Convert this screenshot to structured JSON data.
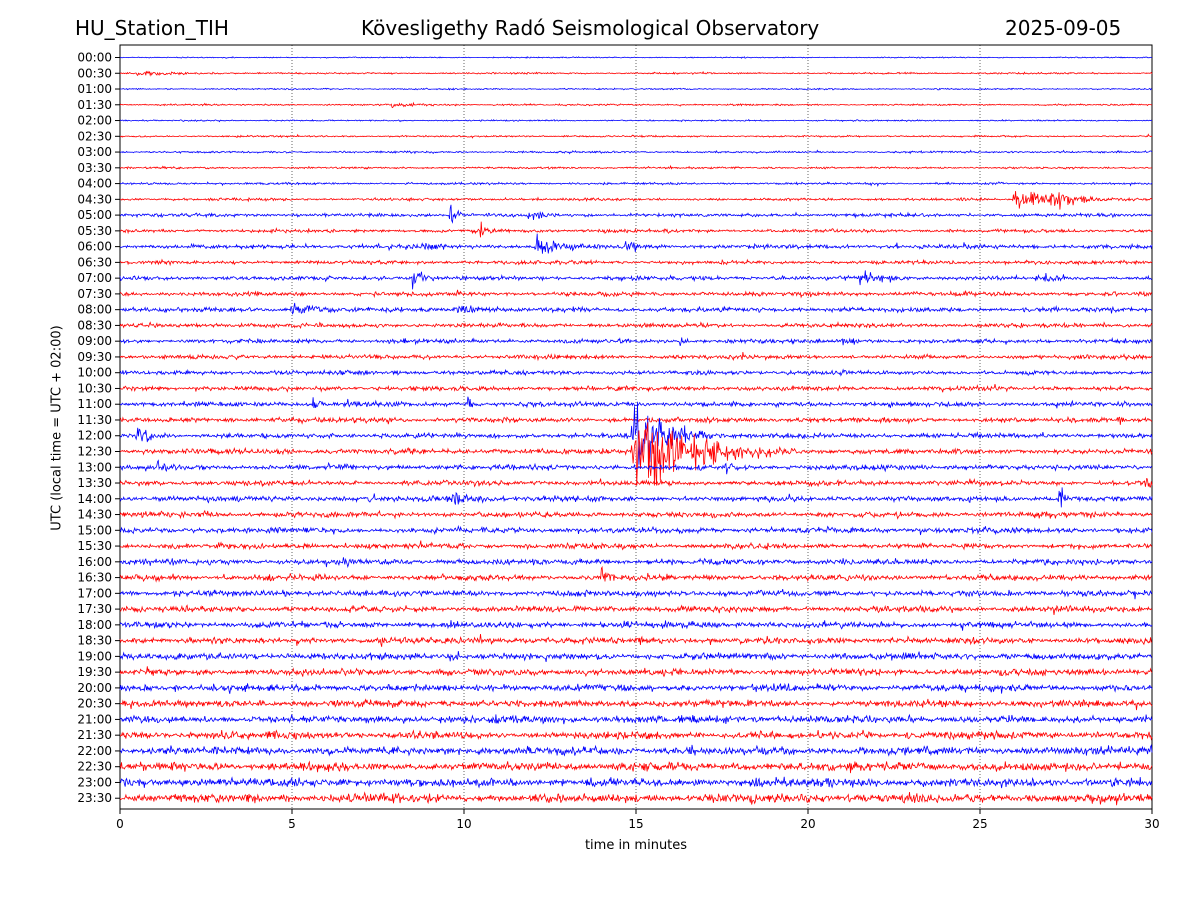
{
  "header": {
    "station": "HU_Station_TIH",
    "observatory": "Kövesligethy Radó Seismological Observatory",
    "date": "2025-09-05"
  },
  "colors": {
    "even_row": "#0000ff",
    "odd_row": "#ff0000",
    "grid": "#000000",
    "background": "#ffffff"
  },
  "chart_data": {
    "type": "line",
    "xlabel": "time in minutes",
    "ylabel": "UTC (local time = UTC + 02:00)",
    "xlim": [
      0,
      30
    ],
    "x_ticks": [
      "0",
      "5",
      "10",
      "15",
      "20",
      "25",
      "30"
    ],
    "grid": "vertical dotted lines at 5 minute intervals",
    "rows": [
      "00:00",
      "00:30",
      "01:00",
      "01:30",
      "02:00",
      "02:30",
      "03:00",
      "03:30",
      "04:00",
      "04:30",
      "05:00",
      "05:30",
      "06:00",
      "06:30",
      "07:00",
      "07:30",
      "08:00",
      "08:30",
      "09:00",
      "09:30",
      "10:00",
      "10:30",
      "11:00",
      "11:30",
      "12:00",
      "12:30",
      "13:00",
      "13:30",
      "14:00",
      "14:30",
      "15:00",
      "15:30",
      "16:00",
      "16:30",
      "17:00",
      "17:30",
      "18:00",
      "18:30",
      "19:00",
      "19:30",
      "20:00",
      "20:30",
      "21:00",
      "21:30",
      "22:00",
      "22:30",
      "23:00",
      "23:30"
    ],
    "noise_levels": [
      0.4,
      0.6,
      0.5,
      0.6,
      0.5,
      0.6,
      0.7,
      0.7,
      0.8,
      0.9,
      1.2,
      1.2,
      1.5,
      1.3,
      1.5,
      1.5,
      1.6,
      1.5,
      1.5,
      1.5,
      1.5,
      1.6,
      1.7,
      1.7,
      1.7,
      1.9,
      1.8,
      1.8,
      1.9,
      1.9,
      2.0,
      2.0,
      2.0,
      2.1,
      2.1,
      2.1,
      2.2,
      2.2,
      2.3,
      2.3,
      2.4,
      2.5,
      2.6,
      2.7,
      2.8,
      3.0,
      3.1,
      3.2
    ],
    "events": [
      {
        "row": "00:30",
        "minute": 0.5,
        "amplitude": 2,
        "duration": 3
      },
      {
        "row": "01:30",
        "minute": 7.8,
        "amplitude": 2,
        "duration": 2
      },
      {
        "row": "04:30",
        "minute": 26.0,
        "amplitude": 8,
        "duration": 1.5
      },
      {
        "row": "04:30",
        "minute": 26.9,
        "amplitude": 9,
        "duration": 1.5
      },
      {
        "row": "05:00",
        "minute": 9.6,
        "amplitude": 9,
        "duration": 0.4
      },
      {
        "row": "05:00",
        "minute": 11.8,
        "amplitude": 4,
        "duration": 1.2
      },
      {
        "row": "05:30",
        "minute": 10.5,
        "amplitude": 8,
        "duration": 0.3
      },
      {
        "row": "06:00",
        "minute": 8.8,
        "amplitude": 6,
        "duration": 1.0
      },
      {
        "row": "06:00",
        "minute": 12.1,
        "amplitude": 8,
        "duration": 1.5
      },
      {
        "row": "06:00",
        "minute": 14.7,
        "amplitude": 5,
        "duration": 0.8
      },
      {
        "row": "07:00",
        "minute": 8.5,
        "amplitude": 10,
        "duration": 0.5
      },
      {
        "row": "07:00",
        "minute": 21.5,
        "amplitude": 6,
        "duration": 1.5
      },
      {
        "row": "07:00",
        "minute": 26.9,
        "amplitude": 6,
        "duration": 0.8
      },
      {
        "row": "08:00",
        "minute": 5.0,
        "amplitude": 5,
        "duration": 2
      },
      {
        "row": "08:00",
        "minute": 9.8,
        "amplitude": 4,
        "duration": 2
      },
      {
        "row": "09:00",
        "minute": 16.3,
        "amplitude": 5,
        "duration": 0.3
      },
      {
        "row": "09:00",
        "minute": 21.0,
        "amplitude": 3,
        "duration": 1.2
      },
      {
        "row": "10:00",
        "minute": 7.9,
        "amplitude": 5,
        "duration": 0.3
      },
      {
        "row": "11:00",
        "minute": 5.6,
        "amplitude": 6,
        "duration": 0.4
      },
      {
        "row": "11:00",
        "minute": 10.1,
        "amplitude": 5,
        "duration": 0.4
      },
      {
        "row": "11:30",
        "minute": 29.0,
        "amplitude": 5,
        "duration": 0.4
      },
      {
        "row": "12:00",
        "minute": 0.5,
        "amplitude": 7,
        "duration": 0.8
      },
      {
        "row": "12:00",
        "minute": 14.9,
        "amplitude": 28,
        "duration": 1.6
      },
      {
        "row": "12:30",
        "minute": 14.9,
        "amplitude": 30,
        "duration": 3
      },
      {
        "row": "13:00",
        "minute": 1.1,
        "amplitude": 6,
        "duration": 0.4
      },
      {
        "row": "13:00",
        "minute": 17.6,
        "amplitude": 6,
        "duration": 0.5
      },
      {
        "row": "13:30",
        "minute": 29.8,
        "amplitude": 10,
        "duration": 0.3
      },
      {
        "row": "14:00",
        "minute": 9.5,
        "amplitude": 6,
        "duration": 2
      },
      {
        "row": "14:00",
        "minute": 27.3,
        "amplitude": 12,
        "duration": 0.3
      },
      {
        "row": "14:30",
        "minute": 22.6,
        "amplitude": 6,
        "duration": 0.2
      },
      {
        "row": "16:00",
        "minute": 6.5,
        "amplitude": 5,
        "duration": 0.3
      },
      {
        "row": "16:30",
        "minute": 14.0,
        "amplitude": 9,
        "duration": 0.4
      },
      {
        "row": "19:00",
        "minute": 9.6,
        "amplitude": 8,
        "duration": 0.4
      }
    ]
  }
}
